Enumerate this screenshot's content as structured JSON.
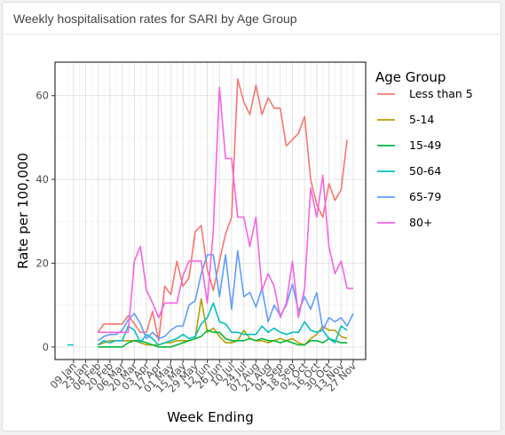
{
  "card": {
    "title": "Weekly hospitalisation rates for SARI by Age Group"
  },
  "chart_data": {
    "type": "line",
    "title": "",
    "xlabel": "Week Ending",
    "ylabel": "Rate per 100,000",
    "ylim": [
      -3,
      68
    ],
    "y_ticks": [
      0,
      20,
      40,
      60
    ],
    "grid": true,
    "legend_title": "Age Group",
    "legend_position": "right",
    "x_tick_labels": [
      "09 Jan",
      "23 Jan",
      "06 Feb",
      "20 Feb",
      "06 Mar",
      "20 Mar",
      "03 Apr",
      "17 Apr",
      "01 May",
      "15 May",
      "29 May",
      "12 Jun",
      "26 Jun",
      "10 Jul",
      "24 Jul",
      "07 Aug",
      "21 Aug",
      "04 Sep",
      "18 Sep",
      "02 Oct",
      "16 Oct",
      "30 Oct",
      "13 Nov",
      "27 Nov"
    ],
    "x": [
      "02 Jan",
      "09 Jan",
      "16 Jan",
      "23 Jan",
      "30 Jan",
      "06 Feb",
      "13 Feb",
      "20 Feb",
      "27 Feb",
      "06 Mar",
      "13 Mar",
      "20 Mar",
      "27 Mar",
      "03 Apr",
      "10 Apr",
      "17 Apr",
      "24 Apr",
      "01 May",
      "08 May",
      "15 May",
      "22 May",
      "29 May",
      "05 Jun",
      "12 Jun",
      "19 Jun",
      "26 Jun",
      "03 Jul",
      "10 Jul",
      "17 Jul",
      "24 Jul",
      "31 Jul",
      "07 Aug",
      "14 Aug",
      "21 Aug",
      "28 Aug",
      "04 Sep",
      "11 Sep",
      "18 Sep",
      "25 Sep",
      "02 Oct",
      "09 Oct",
      "16 Oct",
      "23 Oct",
      "30 Oct",
      "06 Nov",
      "13 Nov",
      "20 Nov",
      "27 Nov"
    ],
    "series": [
      {
        "name": "Less than 5",
        "color": "#F8766D",
        "values": [
          null,
          null,
          null,
          null,
          null,
          3.5,
          5.5,
          5.5,
          5.5,
          5.5,
          7.5,
          5.5,
          3.5,
          3.5,
          8.5,
          1.5,
          14.5,
          12.5,
          20.5,
          14.5,
          16.5,
          27.5,
          29.0,
          18.5,
          13.5,
          20.5,
          27.0,
          31.0,
          64.0,
          58.5,
          55.5,
          62.5,
          55.5,
          59.5,
          57.0,
          57.0,
          48.0,
          49.5,
          51.0,
          55.0,
          40.0,
          34.0,
          31.0,
          39.0,
          35.0,
          37.5,
          49.5,
          null
        ]
      },
      {
        "name": "5-14",
        "color": "#B79F00",
        "values": [
          null,
          null,
          null,
          null,
          null,
          0.5,
          1.0,
          1.5,
          1.5,
          1.5,
          1.5,
          1.5,
          1.0,
          0.5,
          0.5,
          0.5,
          1.0,
          1.0,
          1.5,
          1.5,
          1.5,
          2.0,
          11.5,
          3.5,
          4.5,
          2.5,
          1.0,
          1.0,
          1.5,
          4.0,
          2.0,
          1.5,
          1.5,
          1.0,
          1.5,
          2.0,
          1.5,
          2.0,
          1.0,
          0.5,
          2.0,
          3.0,
          5.0,
          4.0,
          4.0,
          2.5,
          2.0,
          null
        ]
      },
      {
        "name": "15-49",
        "color": "#00BA38",
        "values": [
          null,
          null,
          null,
          null,
          null,
          0.0,
          0.0,
          0.0,
          0.0,
          0.0,
          1.0,
          1.5,
          1.5,
          1.0,
          0.5,
          0.0,
          0.0,
          0.0,
          0.5,
          1.0,
          1.5,
          2.0,
          2.5,
          4.0,
          3.5,
          3.5,
          2.0,
          1.5,
          1.5,
          1.5,
          2.0,
          1.5,
          2.0,
          1.5,
          1.5,
          1.0,
          1.5,
          1.0,
          0.5,
          0.5,
          1.5,
          1.5,
          1.0,
          2.0,
          1.5,
          1.0,
          1.0,
          null
        ]
      },
      {
        "name": "50-64",
        "color": "#00BFC4",
        "values": [
          0.5,
          0.5,
          null,
          null,
          null,
          0.5,
          1.5,
          1.0,
          1.5,
          1.5,
          5.0,
          4.0,
          1.0,
          3.0,
          2.0,
          0.5,
          1.0,
          1.5,
          2.0,
          3.0,
          2.0,
          2.5,
          5.5,
          7.0,
          10.5,
          6.0,
          5.5,
          3.5,
          3.5,
          3.0,
          3.0,
          3.0,
          5.0,
          3.5,
          4.5,
          3.5,
          3.0,
          3.5,
          3.5,
          6.0,
          4.0,
          3.5,
          4.0,
          2.0,
          1.0,
          5.0,
          4.0,
          null
        ]
      },
      {
        "name": "65-79",
        "color": "#619CFF",
        "values": [
          null,
          null,
          null,
          null,
          null,
          1.5,
          2.5,
          3.0,
          3.0,
          4.0,
          6.5,
          8.0,
          5.5,
          2.0,
          3.5,
          2.0,
          2.5,
          4.0,
          5.0,
          5.0,
          10.0,
          11.0,
          17.5,
          22.0,
          22.0,
          12.0,
          22.0,
          9.0,
          23.0,
          12.0,
          13.0,
          9.5,
          14.0,
          6.0,
          10.0,
          7.5,
          10.0,
          15.0,
          8.5,
          12.0,
          9.0,
          13.0,
          4.0,
          7.0,
          6.0,
          7.0,
          5.0,
          8.0
        ]
      },
      {
        "name": "80+",
        "color": "#F564E3",
        "values": [
          null,
          null,
          null,
          null,
          null,
          3.5,
          3.5,
          3.5,
          3.5,
          3.5,
          3.5,
          20.5,
          24.0,
          13.5,
          10.5,
          7.0,
          10.5,
          10.5,
          10.5,
          17.0,
          20.5,
          20.5,
          20.5,
          10.5,
          28.0,
          62.0,
          45.0,
          45.0,
          31.0,
          31.0,
          24.0,
          31.0,
          13.5,
          17.5,
          14.5,
          7.0,
          10.5,
          20.5,
          7.0,
          14.0,
          38.0,
          31.0,
          41.0,
          24.0,
          17.5,
          20.5,
          14.0,
          14.0
        ]
      }
    ]
  }
}
